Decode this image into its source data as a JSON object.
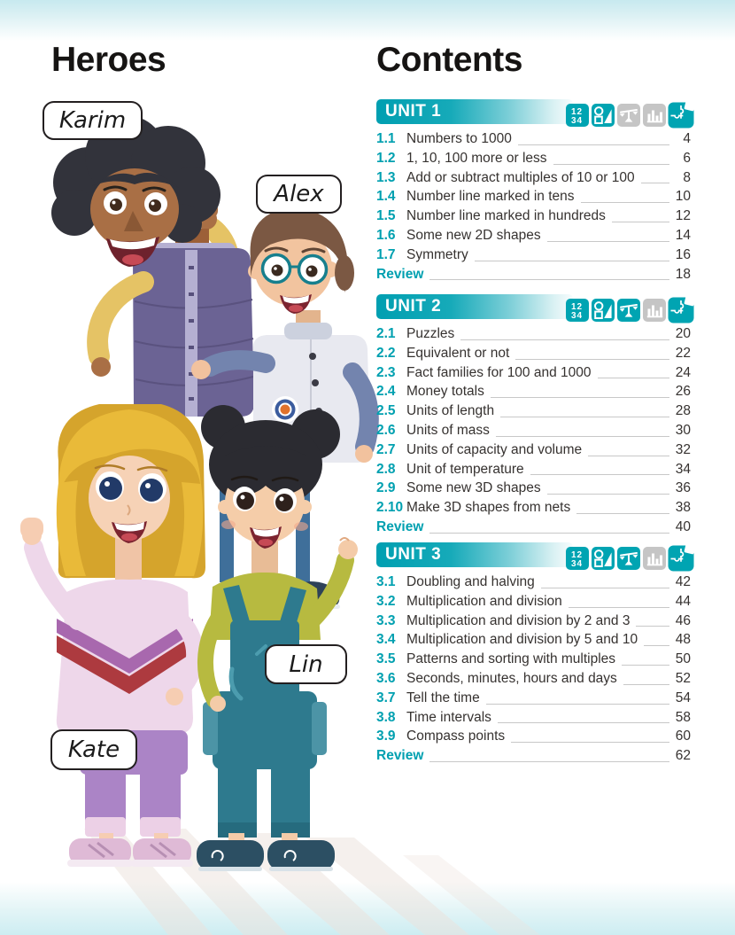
{
  "page": {
    "heroes_title": "Heroes",
    "contents_title": "Contents",
    "colors": {
      "teal": "#00a4b2",
      "inactive": "#c5c5c5",
      "text": "#363230",
      "leader": "#c8c8c8"
    },
    "icons": {
      "numbers_lines": [
        "12",
        "34"
      ]
    }
  },
  "heroes": {
    "labels": {
      "karim": "Karim",
      "alex": "Alex",
      "kate": "Kate",
      "lin": "Lin"
    }
  },
  "contents": {
    "units": [
      {
        "title": "UNIT 1",
        "icons": [
          {
            "name": "numbers-icon",
            "active": true
          },
          {
            "name": "shapes-icon",
            "active": true
          },
          {
            "name": "balance-icon",
            "active": false
          },
          {
            "name": "chart-icon",
            "active": false
          },
          {
            "name": "puzzle-icon",
            "active": true
          }
        ],
        "items": [
          {
            "num": "1.1",
            "label": "Numbers to 1000",
            "page": "4"
          },
          {
            "num": "1.2",
            "label": "1, 10, 100 more or less",
            "page": "6"
          },
          {
            "num": "1.3",
            "label": "Add or subtract multiples of 10 or 100",
            "page": "8"
          },
          {
            "num": "1.4",
            "label": "Number line marked in tens",
            "page": "10"
          },
          {
            "num": "1.5",
            "label": "Number line marked in hundreds",
            "page": "12"
          },
          {
            "num": "1.6",
            "label": "Some new 2D shapes",
            "page": "14"
          },
          {
            "num": "1.7",
            "label": "Symmetry",
            "page": "16"
          }
        ],
        "review": {
          "label": "Review",
          "page": "18"
        }
      },
      {
        "title": "UNIT 2",
        "icons": [
          {
            "name": "numbers-icon",
            "active": true
          },
          {
            "name": "shapes-icon",
            "active": true
          },
          {
            "name": "balance-icon",
            "active": true
          },
          {
            "name": "chart-icon",
            "active": false
          },
          {
            "name": "puzzle-icon",
            "active": true
          }
        ],
        "items": [
          {
            "num": "2.1",
            "label": "Puzzles",
            "page": "20"
          },
          {
            "num": "2.2",
            "label": "Equivalent or not",
            "page": "22"
          },
          {
            "num": "2.3",
            "label": "Fact families for 100 and 1000",
            "page": "24"
          },
          {
            "num": "2.4",
            "label": "Money totals",
            "page": "26"
          },
          {
            "num": "2.5",
            "label": "Units of length",
            "page": "28"
          },
          {
            "num": "2.6",
            "label": "Units of mass",
            "page": "30"
          },
          {
            "num": "2.7",
            "label": "Units of capacity and volume",
            "page": "32"
          },
          {
            "num": "2.8",
            "label": "Unit of temperature",
            "page": "34"
          },
          {
            "num": "2.9",
            "label": "Some new 3D shapes",
            "page": "36"
          },
          {
            "num": "2.10",
            "label": "Make 3D shapes from nets",
            "page": "38"
          }
        ],
        "review": {
          "label": "Review",
          "page": "40"
        }
      },
      {
        "title": "UNIT 3",
        "icons": [
          {
            "name": "numbers-icon",
            "active": true
          },
          {
            "name": "shapes-icon",
            "active": true
          },
          {
            "name": "balance-icon",
            "active": true
          },
          {
            "name": "chart-icon",
            "active": false
          },
          {
            "name": "puzzle-icon",
            "active": true
          }
        ],
        "items": [
          {
            "num": "3.1",
            "label": "Doubling and halving",
            "page": "42"
          },
          {
            "num": "3.2",
            "label": "Multiplication and division",
            "page": "44"
          },
          {
            "num": "3.3",
            "label": "Multiplication and division by 2 and 3",
            "page": "46"
          },
          {
            "num": "3.4",
            "label": "Multiplication and division by 5 and 10",
            "page": "48"
          },
          {
            "num": "3.5",
            "label": "Patterns and sorting with multiples",
            "page": "50"
          },
          {
            "num": "3.6",
            "label": "Seconds, minutes, hours and days",
            "page": "52"
          },
          {
            "num": "3.7",
            "label": "Tell the time",
            "page": "54"
          },
          {
            "num": "3.8",
            "label": "Time intervals",
            "page": "58"
          },
          {
            "num": "3.9",
            "label": "Compass points",
            "page": "60"
          }
        ],
        "review": {
          "label": "Review",
          "page": "62"
        }
      }
    ]
  }
}
